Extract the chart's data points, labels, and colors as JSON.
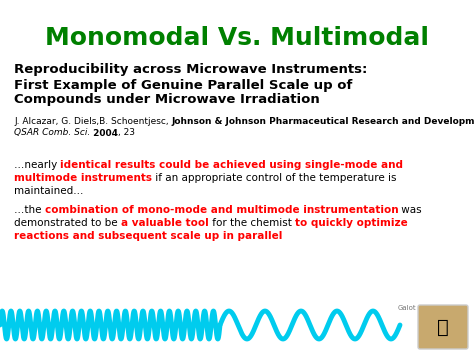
{
  "title": "Monomodal Vs. Multimodal",
  "title_color": "#008000",
  "title_fontsize": 18,
  "background_color": "#ffffff",
  "paper_title_line1": "Reproducibility across Microwave Instruments:",
  "paper_title_line2": "First Example of Genuine Parallel Scale up of",
  "paper_title_line3": "Compounds under Microwave Irradiation",
  "paper_title_fontsize": 9.5,
  "authors_normal": "J. Alcazar, G. Diels,B. Schoentjesc, ",
  "authors_bold": "Johnson & Johnson Pharmaceutical Research and Development,",
  "authors_journal_italic": "QSAR Comb. Sci.",
  "authors_year_bold": " 2004",
  "authors_volume": ", 23",
  "authors_fontsize": 6.5,
  "p1_fontsize": 7.5,
  "p2_fontsize": 7.5,
  "wave_color": "#00ccee",
  "figsize": [
    4.74,
    3.55
  ],
  "dpi": 100
}
